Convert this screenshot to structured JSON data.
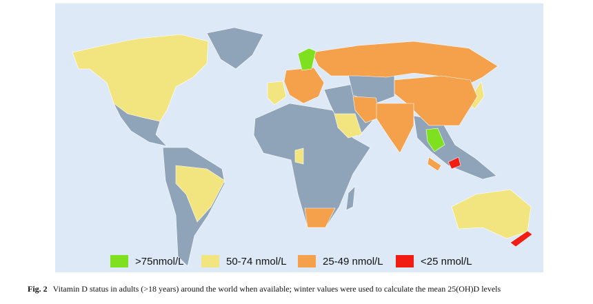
{
  "legend": [
    {
      "label": ">75nmol/L",
      "color": "#7ee01e"
    },
    {
      "label": "50-74 nmol/L",
      "color": "#f2e47e"
    },
    {
      "label": "25-49 nmol/L",
      "color": "#f5a04a"
    },
    {
      "label": "<25 nmol/L",
      "color": "#f21d12"
    }
  ],
  "caption": {
    "label": "Fig. 2",
    "text": "Vitamin D status in adults (>18 years) around the world when available; winter values were used to calculate the mean 25(OH)D levels"
  }
}
